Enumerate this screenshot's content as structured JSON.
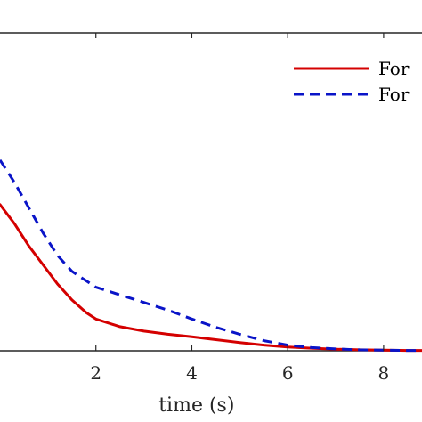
{
  "chart_data": {
    "type": "line",
    "xlabel": "time (s)",
    "ylabel": "",
    "title": "",
    "xlim": [
      0,
      8.8
    ],
    "ylim": [
      0,
      1
    ],
    "x_ticks": [
      2,
      4,
      6,
      8
    ],
    "grid": false,
    "legend_placement": "top-right",
    "series": [
      {
        "name": "For",
        "color": "#d40000",
        "style": "solid",
        "x": [
          0,
          0.3,
          0.6,
          0.9,
          1.2,
          1.5,
          1.8,
          2.0,
          2.5,
          3.0,
          3.5,
          4.0,
          4.5,
          5.0,
          5.5,
          6.0,
          6.5,
          7.0,
          7.5,
          8.0,
          8.5,
          8.8
        ],
        "y": [
          0.46,
          0.4,
          0.33,
          0.27,
          0.21,
          0.16,
          0.12,
          0.1,
          0.076,
          0.062,
          0.052,
          0.044,
          0.035,
          0.026,
          0.018,
          0.012,
          0.008,
          0.005,
          0.003,
          0.002,
          0.001,
          0.001
        ]
      },
      {
        "name": "For",
        "color": "#0a14c8",
        "style": "dashed",
        "x": [
          0,
          0.3,
          0.6,
          0.9,
          1.2,
          1.5,
          1.8,
          2.0,
          2.5,
          3.0,
          3.5,
          4.0,
          4.5,
          5.0,
          5.5,
          6.0,
          6.5,
          7.0,
          7.5,
          8.0,
          8.5,
          8.8
        ],
        "y": [
          0.6,
          0.53,
          0.45,
          0.37,
          0.3,
          0.25,
          0.22,
          0.2,
          0.176,
          0.152,
          0.128,
          0.1,
          0.074,
          0.052,
          0.032,
          0.018,
          0.01,
          0.006,
          0.003,
          0.002,
          0.001,
          0.001
        ]
      }
    ]
  }
}
